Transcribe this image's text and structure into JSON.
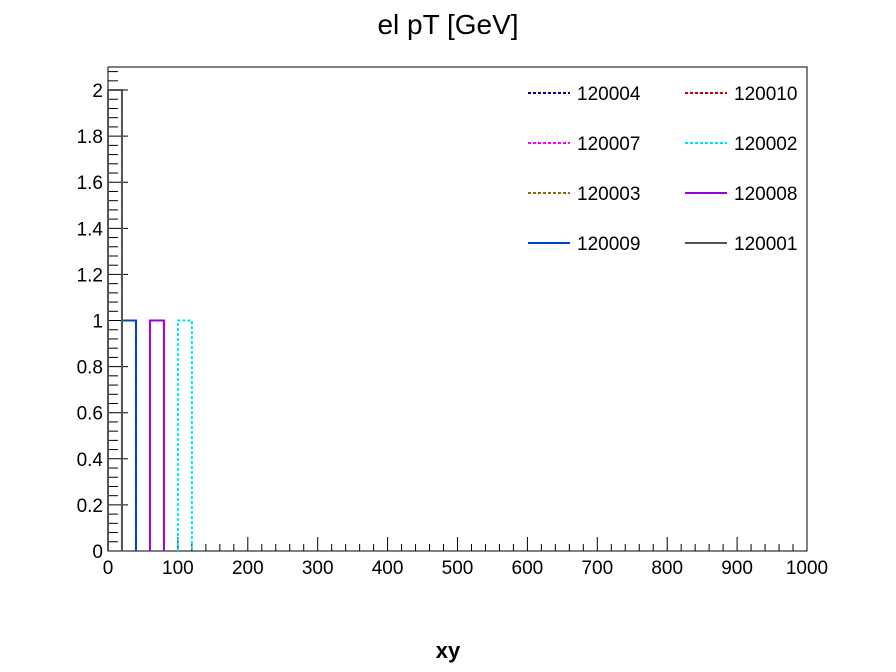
{
  "chart_data": {
    "type": "histogram",
    "title": "el pT [GeV]",
    "xlabel": "xy",
    "ylabel": "",
    "xlim": [
      0,
      1000
    ],
    "ylim": [
      0,
      2.1
    ],
    "x_ticks": [
      "0",
      "100",
      "200",
      "300",
      "400",
      "500",
      "600",
      "700",
      "800",
      "900",
      "1000"
    ],
    "y_ticks": [
      "0",
      "0.2",
      "0.4",
      "0.6",
      "0.8",
      "1",
      "1.2",
      "1.4",
      "1.6",
      "1.8",
      "2"
    ],
    "legend_position": "top-right",
    "series": [
      {
        "name": "120004",
        "color": "#00008b",
        "style": "dotted",
        "bins": [
          {
            "x0": 20,
            "x1": 40,
            "y": 1
          }
        ]
      },
      {
        "name": "120010",
        "color": "#cc0000",
        "style": "dotted",
        "bins": [
          {
            "x0": 0,
            "x1": 20,
            "y": 2
          }
        ]
      },
      {
        "name": "120007",
        "color": "#ff00ff",
        "style": "dotted",
        "bins": []
      },
      {
        "name": "120002",
        "color": "#00e5e5",
        "style": "dotted",
        "bins": [
          {
            "x0": 100,
            "x1": 120,
            "y": 1
          }
        ]
      },
      {
        "name": "120003",
        "color": "#8b6914",
        "style": "dotted",
        "bins": []
      },
      {
        "name": "120008",
        "color": "#9900dd",
        "style": "solid",
        "bins": [
          {
            "x0": 60,
            "x1": 80,
            "y": 1
          }
        ]
      },
      {
        "name": "120009",
        "color": "#0044cc",
        "style": "solid",
        "bins": [
          {
            "x0": 20,
            "x1": 40,
            "y": 1
          }
        ]
      },
      {
        "name": "120001",
        "color": "#555555",
        "style": "solid",
        "bins": [
          {
            "x0": 0,
            "x1": 20,
            "y": 2
          }
        ]
      }
    ]
  }
}
